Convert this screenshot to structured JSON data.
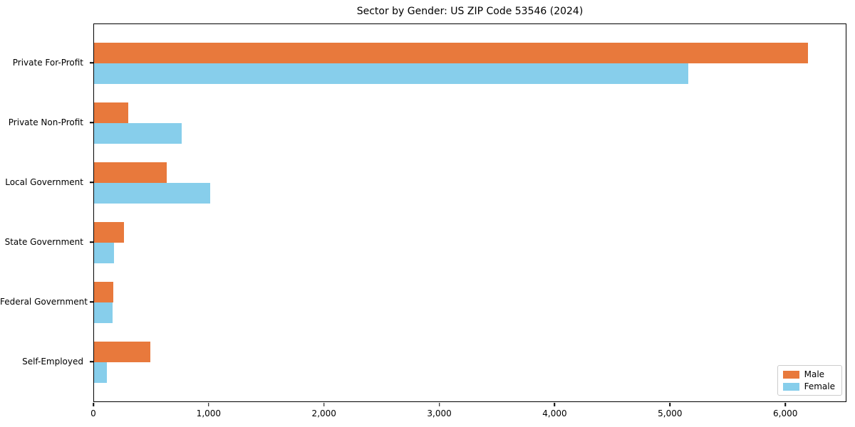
{
  "title": "Sector by Gender: US ZIP Code 53546 (2024)",
  "chart_data": {
    "type": "bar",
    "orientation": "horizontal",
    "title": "Sector by Gender: US ZIP Code 53546 (2024)",
    "categories": [
      "Private For-Profit",
      "Private Non-Profit",
      "Local Government",
      "State Government",
      "Federal Government",
      "Self-Employed"
    ],
    "series": [
      {
        "name": "Male",
        "color": "#e8793c",
        "values": [
          6200,
          300,
          630,
          260,
          170,
          490
        ]
      },
      {
        "name": "Female",
        "color": "#87ceeb",
        "values": [
          5160,
          760,
          1010,
          175,
          160,
          110
        ]
      }
    ],
    "xlabel": "",
    "ylabel": "",
    "xlim": [
      0,
      6530
    ],
    "x_tick_values": [
      0,
      1000,
      2000,
      3000,
      4000,
      5000,
      6000
    ],
    "x_tick_labels": [
      "0",
      "1,000",
      "2,000",
      "3,000",
      "4,000",
      "5,000",
      "6,000"
    ],
    "grid": false,
    "legend_position": "lower right",
    "legend_labels": [
      "Male",
      "Female"
    ]
  }
}
